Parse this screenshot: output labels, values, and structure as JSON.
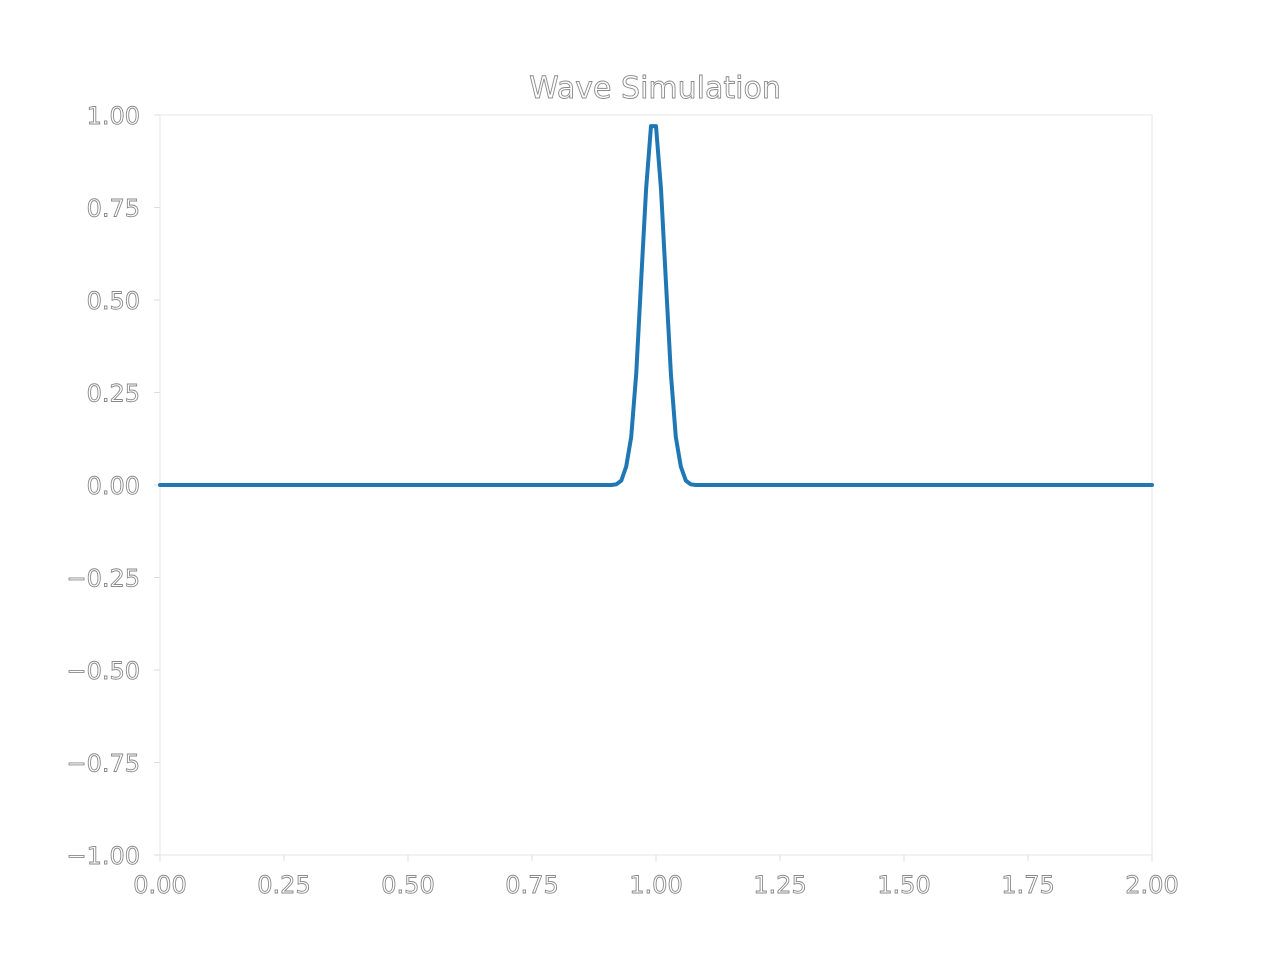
{
  "chart_data": {
    "type": "line",
    "title": "Wave Simulation",
    "xlabel": "",
    "ylabel": "",
    "xlim": [
      0.0,
      2.0
    ],
    "ylim": [
      -1.0,
      1.0
    ],
    "xticks": [
      "0.00",
      "0.25",
      "0.50",
      "0.75",
      "1.00",
      "1.25",
      "1.50",
      "1.75",
      "2.00"
    ],
    "yticks": [
      "−1.00",
      "−0.75",
      "−0.50",
      "−0.25",
      "0.00",
      "0.25",
      "0.50",
      "0.75",
      "1.00"
    ],
    "grid": false,
    "series": [
      {
        "color": "#1f77b4",
        "x": [
          0.0,
          0.9,
          0.91,
          0.92,
          0.93,
          0.94,
          0.95,
          0.96,
          0.97,
          0.98,
          0.99,
          1.0,
          1.01,
          1.02,
          1.03,
          1.04,
          1.05,
          1.06,
          1.07,
          1.08,
          1.09,
          1.1,
          2.0
        ],
        "y": [
          0.0,
          0.0,
          0.0,
          0.002,
          0.012,
          0.05,
          0.13,
          0.3,
          0.55,
          0.8,
          0.97,
          0.97,
          0.8,
          0.55,
          0.3,
          0.13,
          0.05,
          0.012,
          0.002,
          0.0,
          0.0,
          0.0,
          0.0
        ]
      }
    ]
  }
}
